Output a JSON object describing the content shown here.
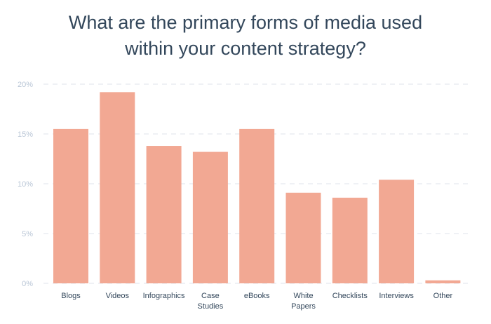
{
  "title_lines": [
    "What are the primary forms of media used",
    "within your content strategy?"
  ],
  "colors": {
    "bar": "#f2a893",
    "grid": "#dfe3eb",
    "title": "#33475b",
    "tick_label": "#b9c6d6",
    "category_label": "#33475b"
  },
  "chart_data": {
    "type": "bar",
    "title": "What are the primary forms of media used within your content strategy?",
    "categories": [
      [
        "Blogs"
      ],
      [
        "Videos"
      ],
      [
        "Infographics"
      ],
      [
        "Case",
        "Studies"
      ],
      [
        "eBooks"
      ],
      [
        "White",
        "Papers"
      ],
      [
        "Checklists"
      ],
      [
        "Interviews"
      ],
      [
        "Other"
      ]
    ],
    "values": [
      15.5,
      19.2,
      13.8,
      13.2,
      15.5,
      9.1,
      8.6,
      10.4,
      0.3
    ],
    "unit": "%",
    "ylim": [
      0,
      20
    ],
    "yticks": [
      0,
      5,
      10,
      15,
      20
    ],
    "ytick_labels": [
      "0%",
      "5%",
      "10%",
      "15%",
      "20%"
    ],
    "grid": true,
    "grid_style": "dashed",
    "legend": "none"
  }
}
